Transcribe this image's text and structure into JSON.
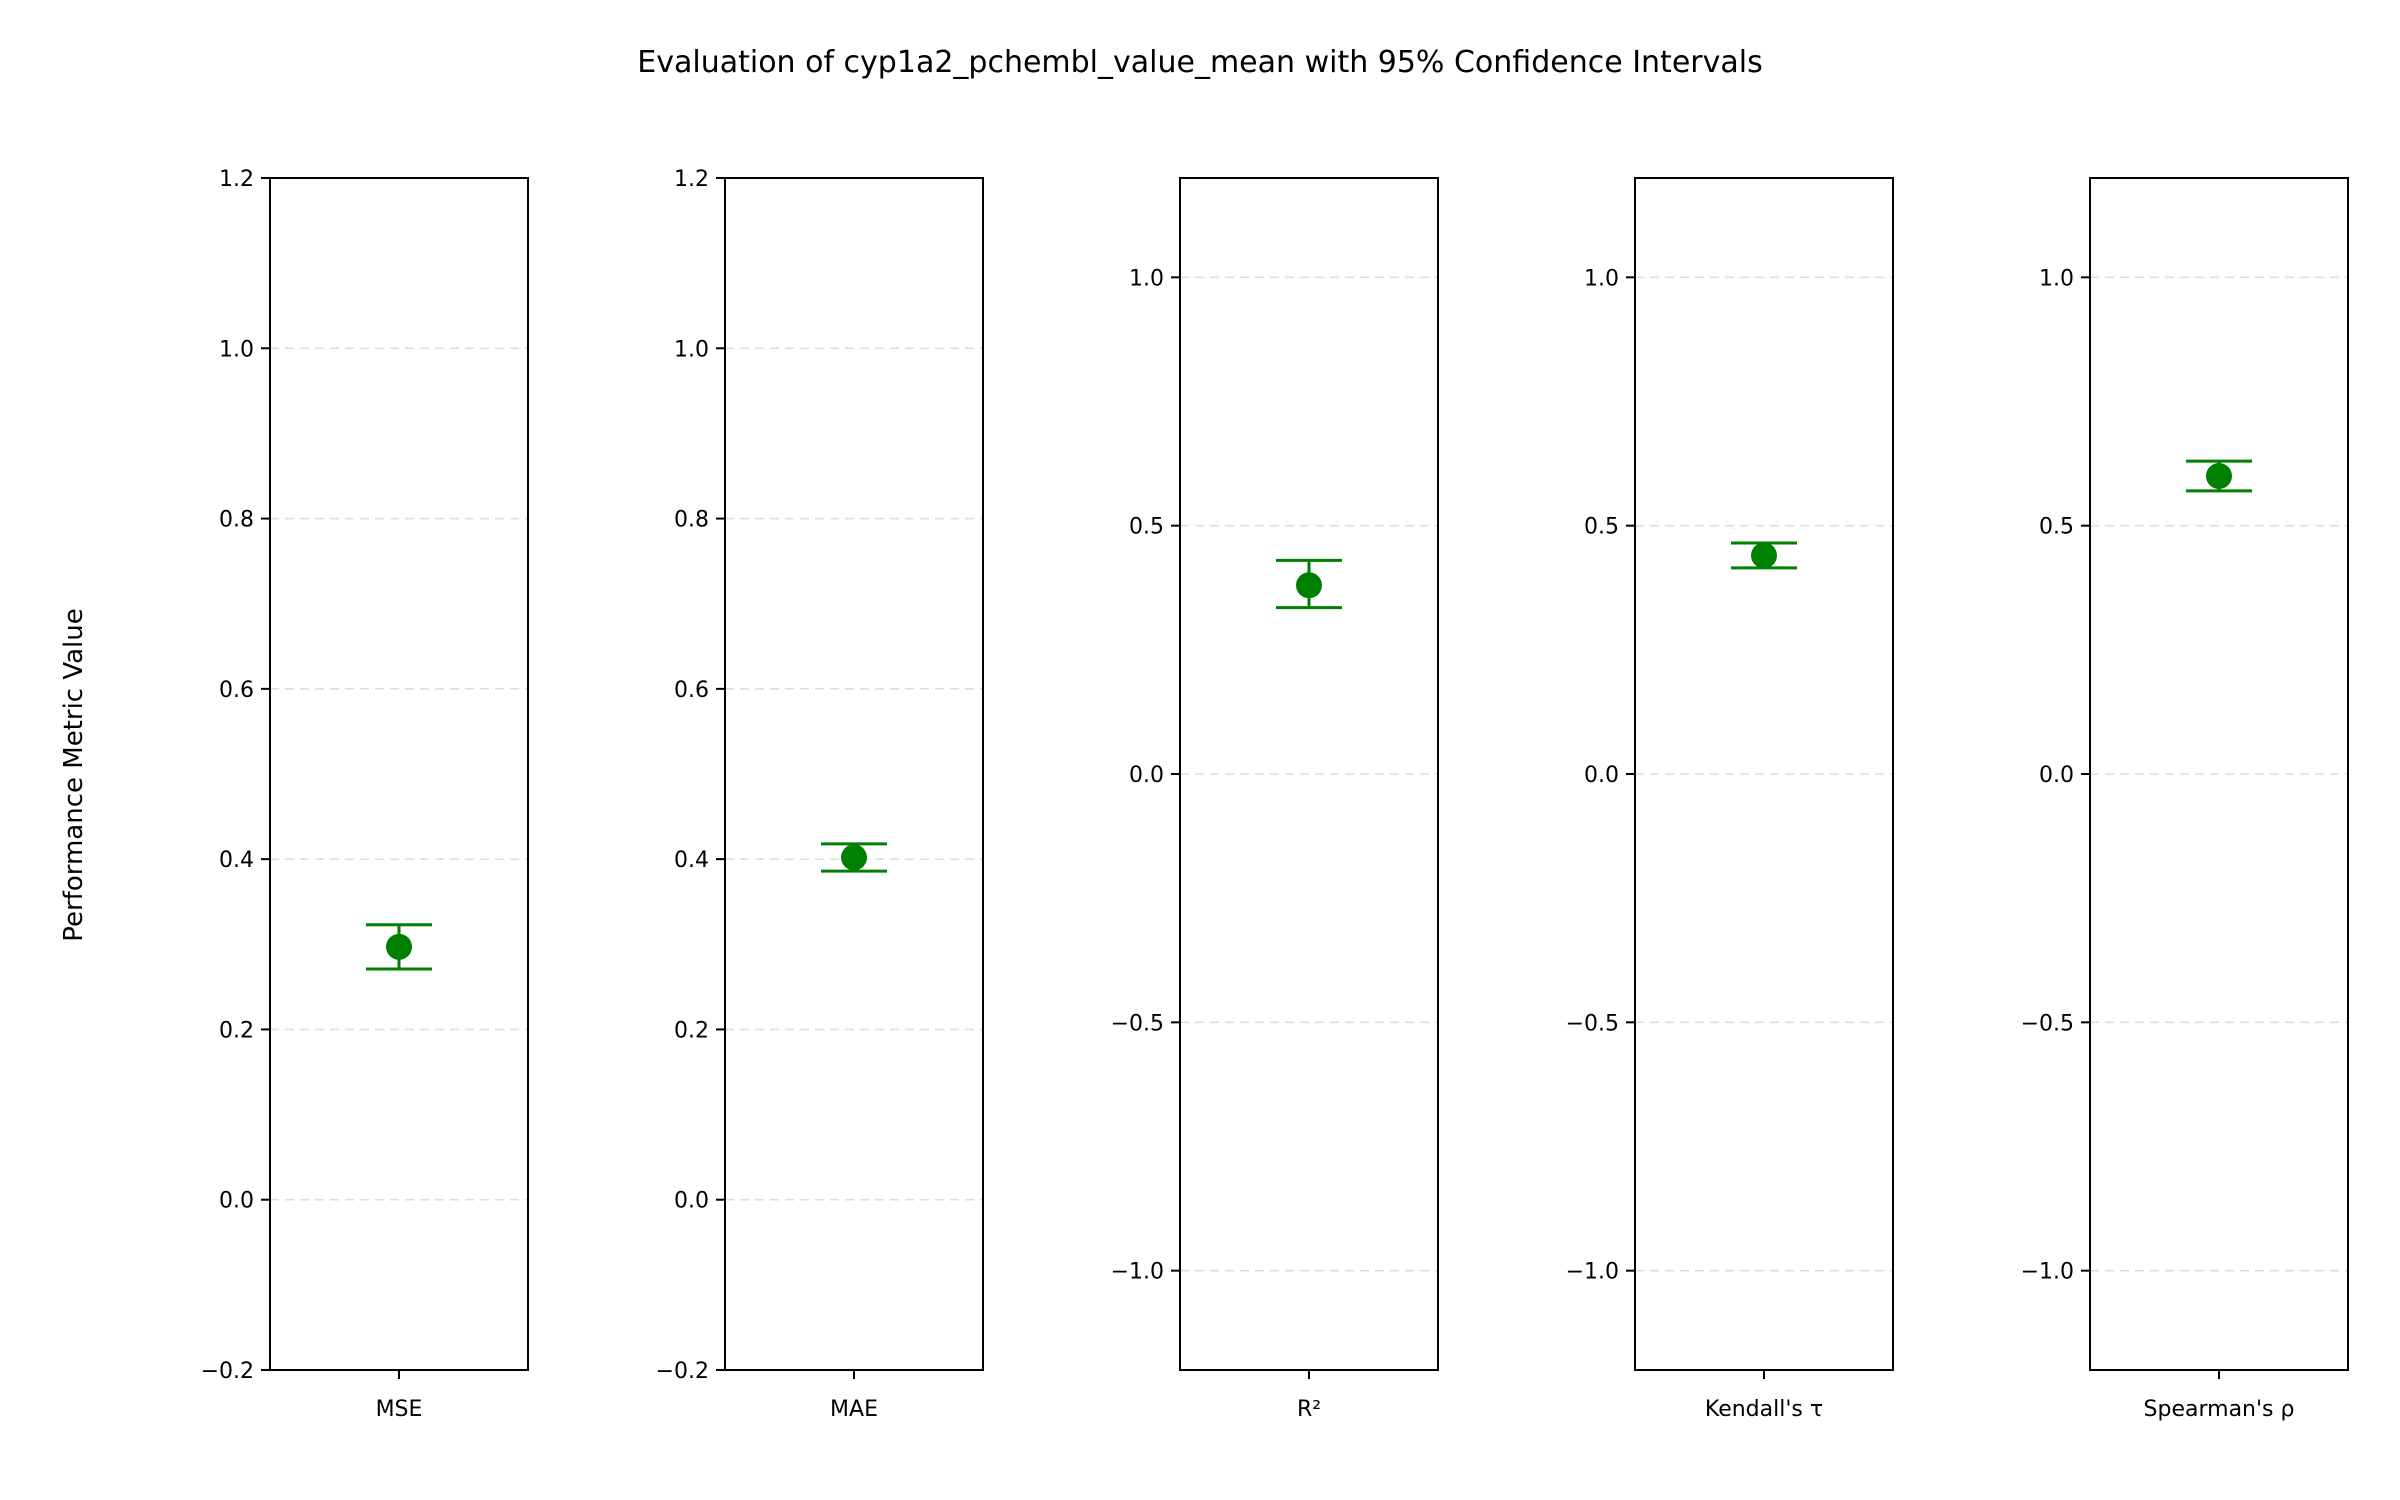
{
  "chart_data": {
    "type": "scatter",
    "title": "Evaluation of cyp1a2_pchembl_value_mean with 95% Confidence Intervals",
    "ylabel": "Performance Metric Value",
    "marker_color": "#008000",
    "grid": true,
    "panels": [
      {
        "category": "MSE",
        "ylim": [
          -0.2,
          1.2
        ],
        "yticks": [
          -0.2,
          0.0,
          0.2,
          0.4,
          0.6,
          0.8,
          1.0,
          1.2
        ],
        "ytick_labels": [
          "−0.2",
          "0.0",
          "0.2",
          "0.4",
          "0.6",
          "0.8",
          "1.0",
          "1.2"
        ],
        "value": 0.297,
        "ci_low": 0.271,
        "ci_high": 0.323
      },
      {
        "category": "MAE",
        "ylim": [
          -0.2,
          1.2
        ],
        "yticks": [
          -0.2,
          0.0,
          0.2,
          0.4,
          0.6,
          0.8,
          1.0,
          1.2
        ],
        "ytick_labels": [
          "−0.2",
          "0.0",
          "0.2",
          "0.4",
          "0.6",
          "0.8",
          "1.0",
          "1.2"
        ],
        "value": 0.402,
        "ci_low": 0.386,
        "ci_high": 0.418
      },
      {
        "category": "R²",
        "ylim": [
          -1.2,
          1.2
        ],
        "yticks": [
          -1.0,
          -0.5,
          0.0,
          0.5,
          1.0
        ],
        "ytick_labels": [
          "−1.0",
          "−0.5",
          "0.0",
          "0.5",
          "1.0"
        ],
        "value": 0.38,
        "ci_low": 0.335,
        "ci_high": 0.43
      },
      {
        "category": "Kendall's τ",
        "ylim": [
          -1.2,
          1.2
        ],
        "yticks": [
          -1.0,
          -0.5,
          0.0,
          0.5,
          1.0
        ],
        "ytick_labels": [
          "−1.0",
          "−0.5",
          "0.0",
          "0.5",
          "1.0"
        ],
        "value": 0.44,
        "ci_low": 0.415,
        "ci_high": 0.465
      },
      {
        "category": "Spearman's ρ",
        "ylim": [
          -1.2,
          1.2
        ],
        "yticks": [
          -1.0,
          -0.5,
          0.0,
          0.5,
          1.0
        ],
        "ytick_labels": [
          "−1.0",
          "−0.5",
          "0.0",
          "0.5",
          "1.0"
        ],
        "value": 0.6,
        "ci_low": 0.57,
        "ci_high": 0.63
      }
    ]
  }
}
